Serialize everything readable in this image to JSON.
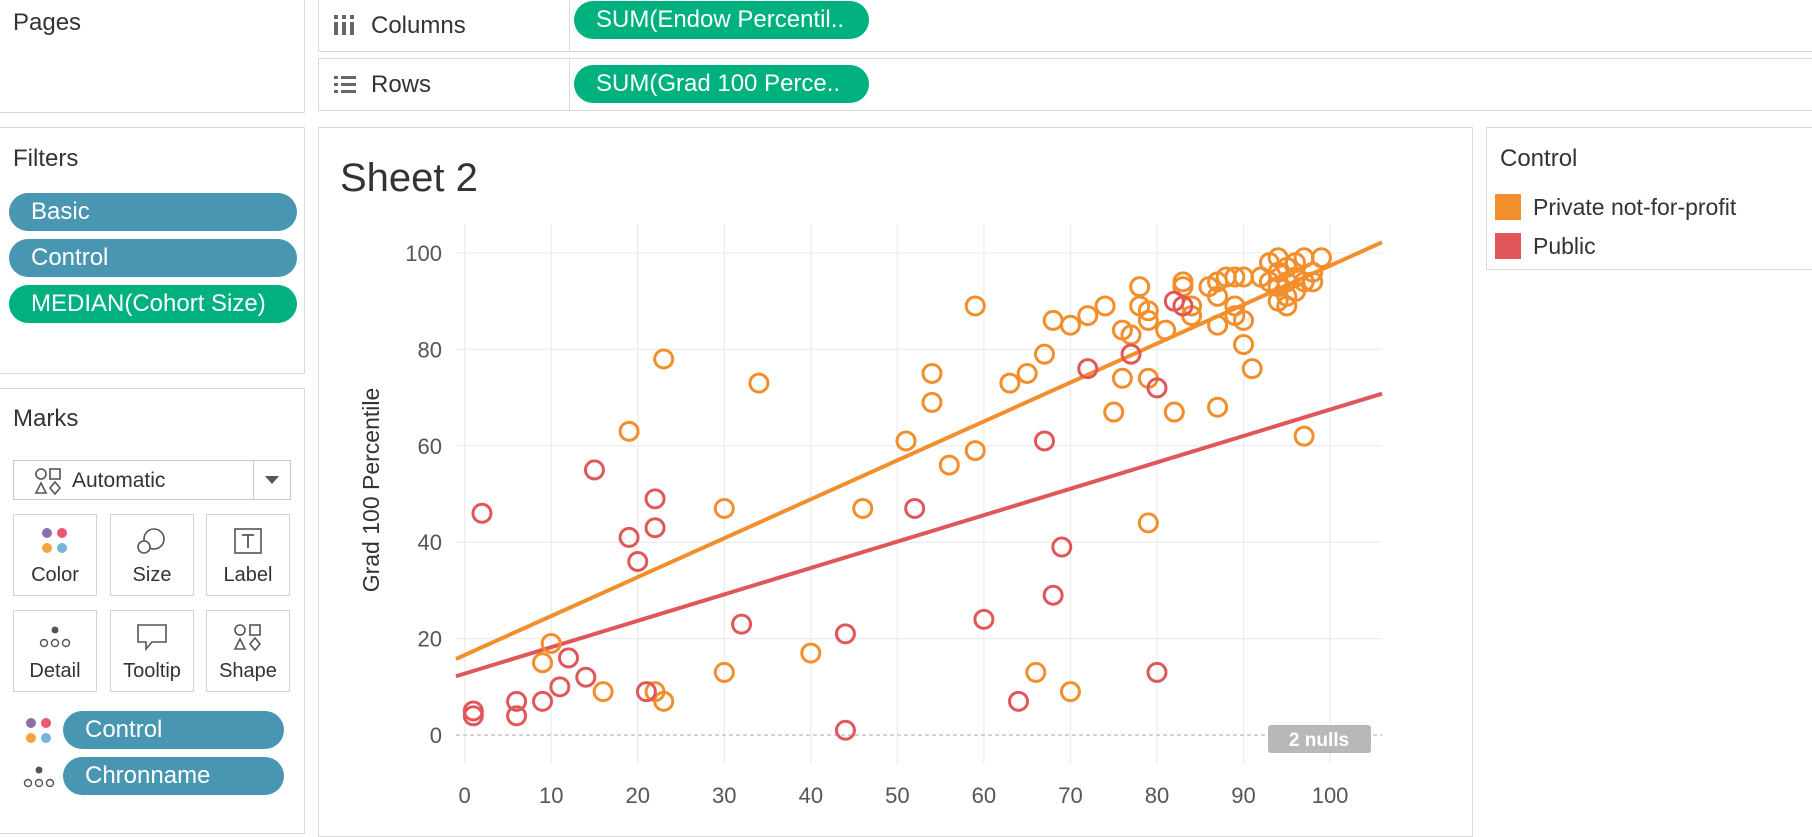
{
  "pages": {
    "title": "Pages"
  },
  "shelves": {
    "columns": {
      "label": "Columns",
      "pill": "SUM(Endow Percentil.."
    },
    "rows": {
      "label": "Rows",
      "pill": "SUM(Grad 100 Perce.."
    }
  },
  "filters": {
    "title": "Filters",
    "items": [
      {
        "label": "Basic",
        "color": "#4996b2"
      },
      {
        "label": "Control",
        "color": "#4996b2"
      },
      {
        "label": "MEDIAN(Cohort Size)",
        "color": "#00b180"
      }
    ]
  },
  "marks": {
    "title": "Marks",
    "mark_type": "Automatic",
    "buttons": [
      {
        "label": "Color",
        "icon": "color-icon"
      },
      {
        "label": "Size",
        "icon": "size-icon"
      },
      {
        "label": "Label",
        "icon": "label-icon"
      },
      {
        "label": "Detail",
        "icon": "detail-icon"
      },
      {
        "label": "Tooltip",
        "icon": "tooltip-icon"
      },
      {
        "label": "Shape",
        "icon": "shape-icon"
      }
    ],
    "fields": [
      {
        "label": "Control",
        "icon": "color-icon"
      },
      {
        "label": "Chronname",
        "icon": "detail-icon"
      }
    ]
  },
  "sheet": {
    "title": "Sheet 2",
    "nulls_badge": "2 nulls"
  },
  "legend": {
    "title": "Control",
    "items": [
      {
        "label": "Private not-for-profit",
        "color": "#f28e2b"
      },
      {
        "label": "Public",
        "color": "#e15759"
      }
    ]
  },
  "chart_data": {
    "type": "scatter",
    "title": "Sheet 2",
    "xlabel": "",
    "ylabel": "Grad 100 Percentile",
    "xlim": [
      -1,
      106
    ],
    "ylim": [
      -6,
      106
    ],
    "xticks": [
      0,
      10,
      20,
      30,
      40,
      50,
      60,
      70,
      80,
      90,
      100
    ],
    "yticks": [
      0,
      20,
      40,
      60,
      80,
      100
    ],
    "grid": true,
    "marker": "open-circle",
    "series": [
      {
        "name": "Private not-for-profit",
        "color": "#f28e2b",
        "trend": [
          [
            -1,
            15.8
          ],
          [
            106,
            102.2
          ]
        ],
        "points": [
          [
            10,
            19
          ],
          [
            9,
            15
          ],
          [
            16,
            9
          ],
          [
            22,
            9
          ],
          [
            23,
            7
          ],
          [
            23,
            78
          ],
          [
            19,
            63
          ],
          [
            30,
            47
          ],
          [
            30,
            13
          ],
          [
            34,
            73
          ],
          [
            40,
            17
          ],
          [
            46,
            47
          ],
          [
            51,
            61
          ],
          [
            54,
            75
          ],
          [
            54,
            69
          ],
          [
            56,
            56
          ],
          [
            59,
            59
          ],
          [
            59,
            89
          ],
          [
            63,
            73
          ],
          [
            65,
            75
          ],
          [
            66,
            13
          ],
          [
            67,
            79
          ],
          [
            68,
            86
          ],
          [
            70,
            85
          ],
          [
            70,
            9
          ],
          [
            72,
            87
          ],
          [
            74,
            89
          ],
          [
            75,
            67
          ],
          [
            76,
            84
          ],
          [
            76,
            74
          ],
          [
            77,
            83
          ],
          [
            78,
            93
          ],
          [
            78,
            89
          ],
          [
            79,
            86
          ],
          [
            79,
            88
          ],
          [
            79,
            74
          ],
          [
            79,
            44
          ],
          [
            81,
            84
          ],
          [
            82,
            67
          ],
          [
            83,
            94
          ],
          [
            83,
            93
          ],
          [
            84,
            87
          ],
          [
            84,
            89
          ],
          [
            86,
            93
          ],
          [
            87,
            94
          ],
          [
            87,
            91
          ],
          [
            87,
            85
          ],
          [
            87,
            68
          ],
          [
            88,
            95
          ],
          [
            89,
            95
          ],
          [
            89,
            89
          ],
          [
            89,
            87
          ],
          [
            90,
            95
          ],
          [
            90,
            86
          ],
          [
            90,
            81
          ],
          [
            91,
            76
          ],
          [
            92,
            95
          ],
          [
            93,
            98
          ],
          [
            93,
            94
          ],
          [
            94,
            99
          ],
          [
            94,
            96
          ],
          [
            94,
            93
          ],
          [
            94,
            90
          ],
          [
            95,
            97
          ],
          [
            95,
            94
          ],
          [
            95,
            91
          ],
          [
            95,
            89
          ],
          [
            96,
            98
          ],
          [
            96,
            95
          ],
          [
            96,
            92
          ],
          [
            97,
            99
          ],
          [
            97,
            94
          ],
          [
            97,
            62
          ],
          [
            98,
            96
          ],
          [
            98,
            94
          ],
          [
            99,
            99
          ]
        ]
      },
      {
        "name": "Public",
        "color": "#e15759",
        "trend": [
          [
            -1,
            12.2
          ],
          [
            106,
            70.8
          ]
        ],
        "points": [
          [
            1,
            5
          ],
          [
            1,
            4
          ],
          [
            2,
            46
          ],
          [
            6,
            7
          ],
          [
            6,
            4
          ],
          [
            9,
            7
          ],
          [
            11,
            10
          ],
          [
            12,
            16
          ],
          [
            14,
            12
          ],
          [
            15,
            55
          ],
          [
            19,
            41
          ],
          [
            20,
            36
          ],
          [
            21,
            9
          ],
          [
            22,
            49
          ],
          [
            22,
            43
          ],
          [
            32,
            23
          ],
          [
            44,
            21
          ],
          [
            44,
            1
          ],
          [
            52,
            47
          ],
          [
            60,
            24
          ],
          [
            64,
            7
          ],
          [
            67,
            61
          ],
          [
            68,
            29
          ],
          [
            69,
            39
          ],
          [
            72,
            76
          ],
          [
            77,
            79
          ],
          [
            80,
            13
          ],
          [
            80,
            72
          ],
          [
            82,
            90
          ],
          [
            83,
            89
          ]
        ]
      }
    ]
  }
}
